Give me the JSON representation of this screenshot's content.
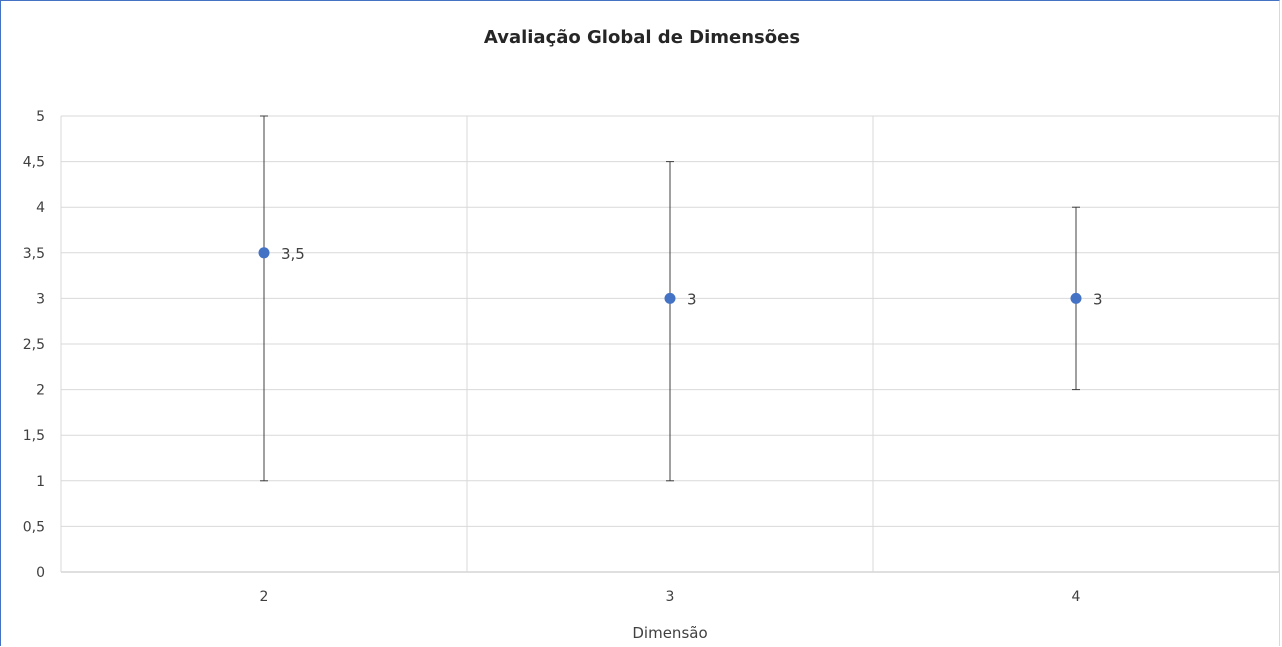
{
  "chart_data": {
    "type": "scatter",
    "title": "Avaliação Global de Dimensões",
    "xlabel": "Dimensão",
    "ylabel": "",
    "categories": [
      "2",
      "3",
      "4"
    ],
    "values": [
      3.5,
      3,
      3
    ],
    "data_labels": [
      "3,5",
      "3",
      "3"
    ],
    "error_bars": [
      {
        "low": 1,
        "high": 5
      },
      {
        "low": 1,
        "high": 4.5
      },
      {
        "low": 2,
        "high": 4
      }
    ],
    "ylim": [
      0,
      5
    ],
    "y_ticks": [
      0,
      0.5,
      1,
      1.5,
      2,
      2.5,
      3,
      3.5,
      4,
      4.5,
      5
    ],
    "y_tick_labels": [
      "0",
      "0,5",
      "1",
      "1,5",
      "2",
      "2,5",
      "3",
      "3,5",
      "4",
      "4,5",
      "5"
    ],
    "grid": true,
    "legend": "none",
    "colors": {
      "marker": "#4472c4",
      "error_bar": "#404040",
      "grid": "#d9d9d9",
      "axis": "#bfbfbf"
    }
  }
}
